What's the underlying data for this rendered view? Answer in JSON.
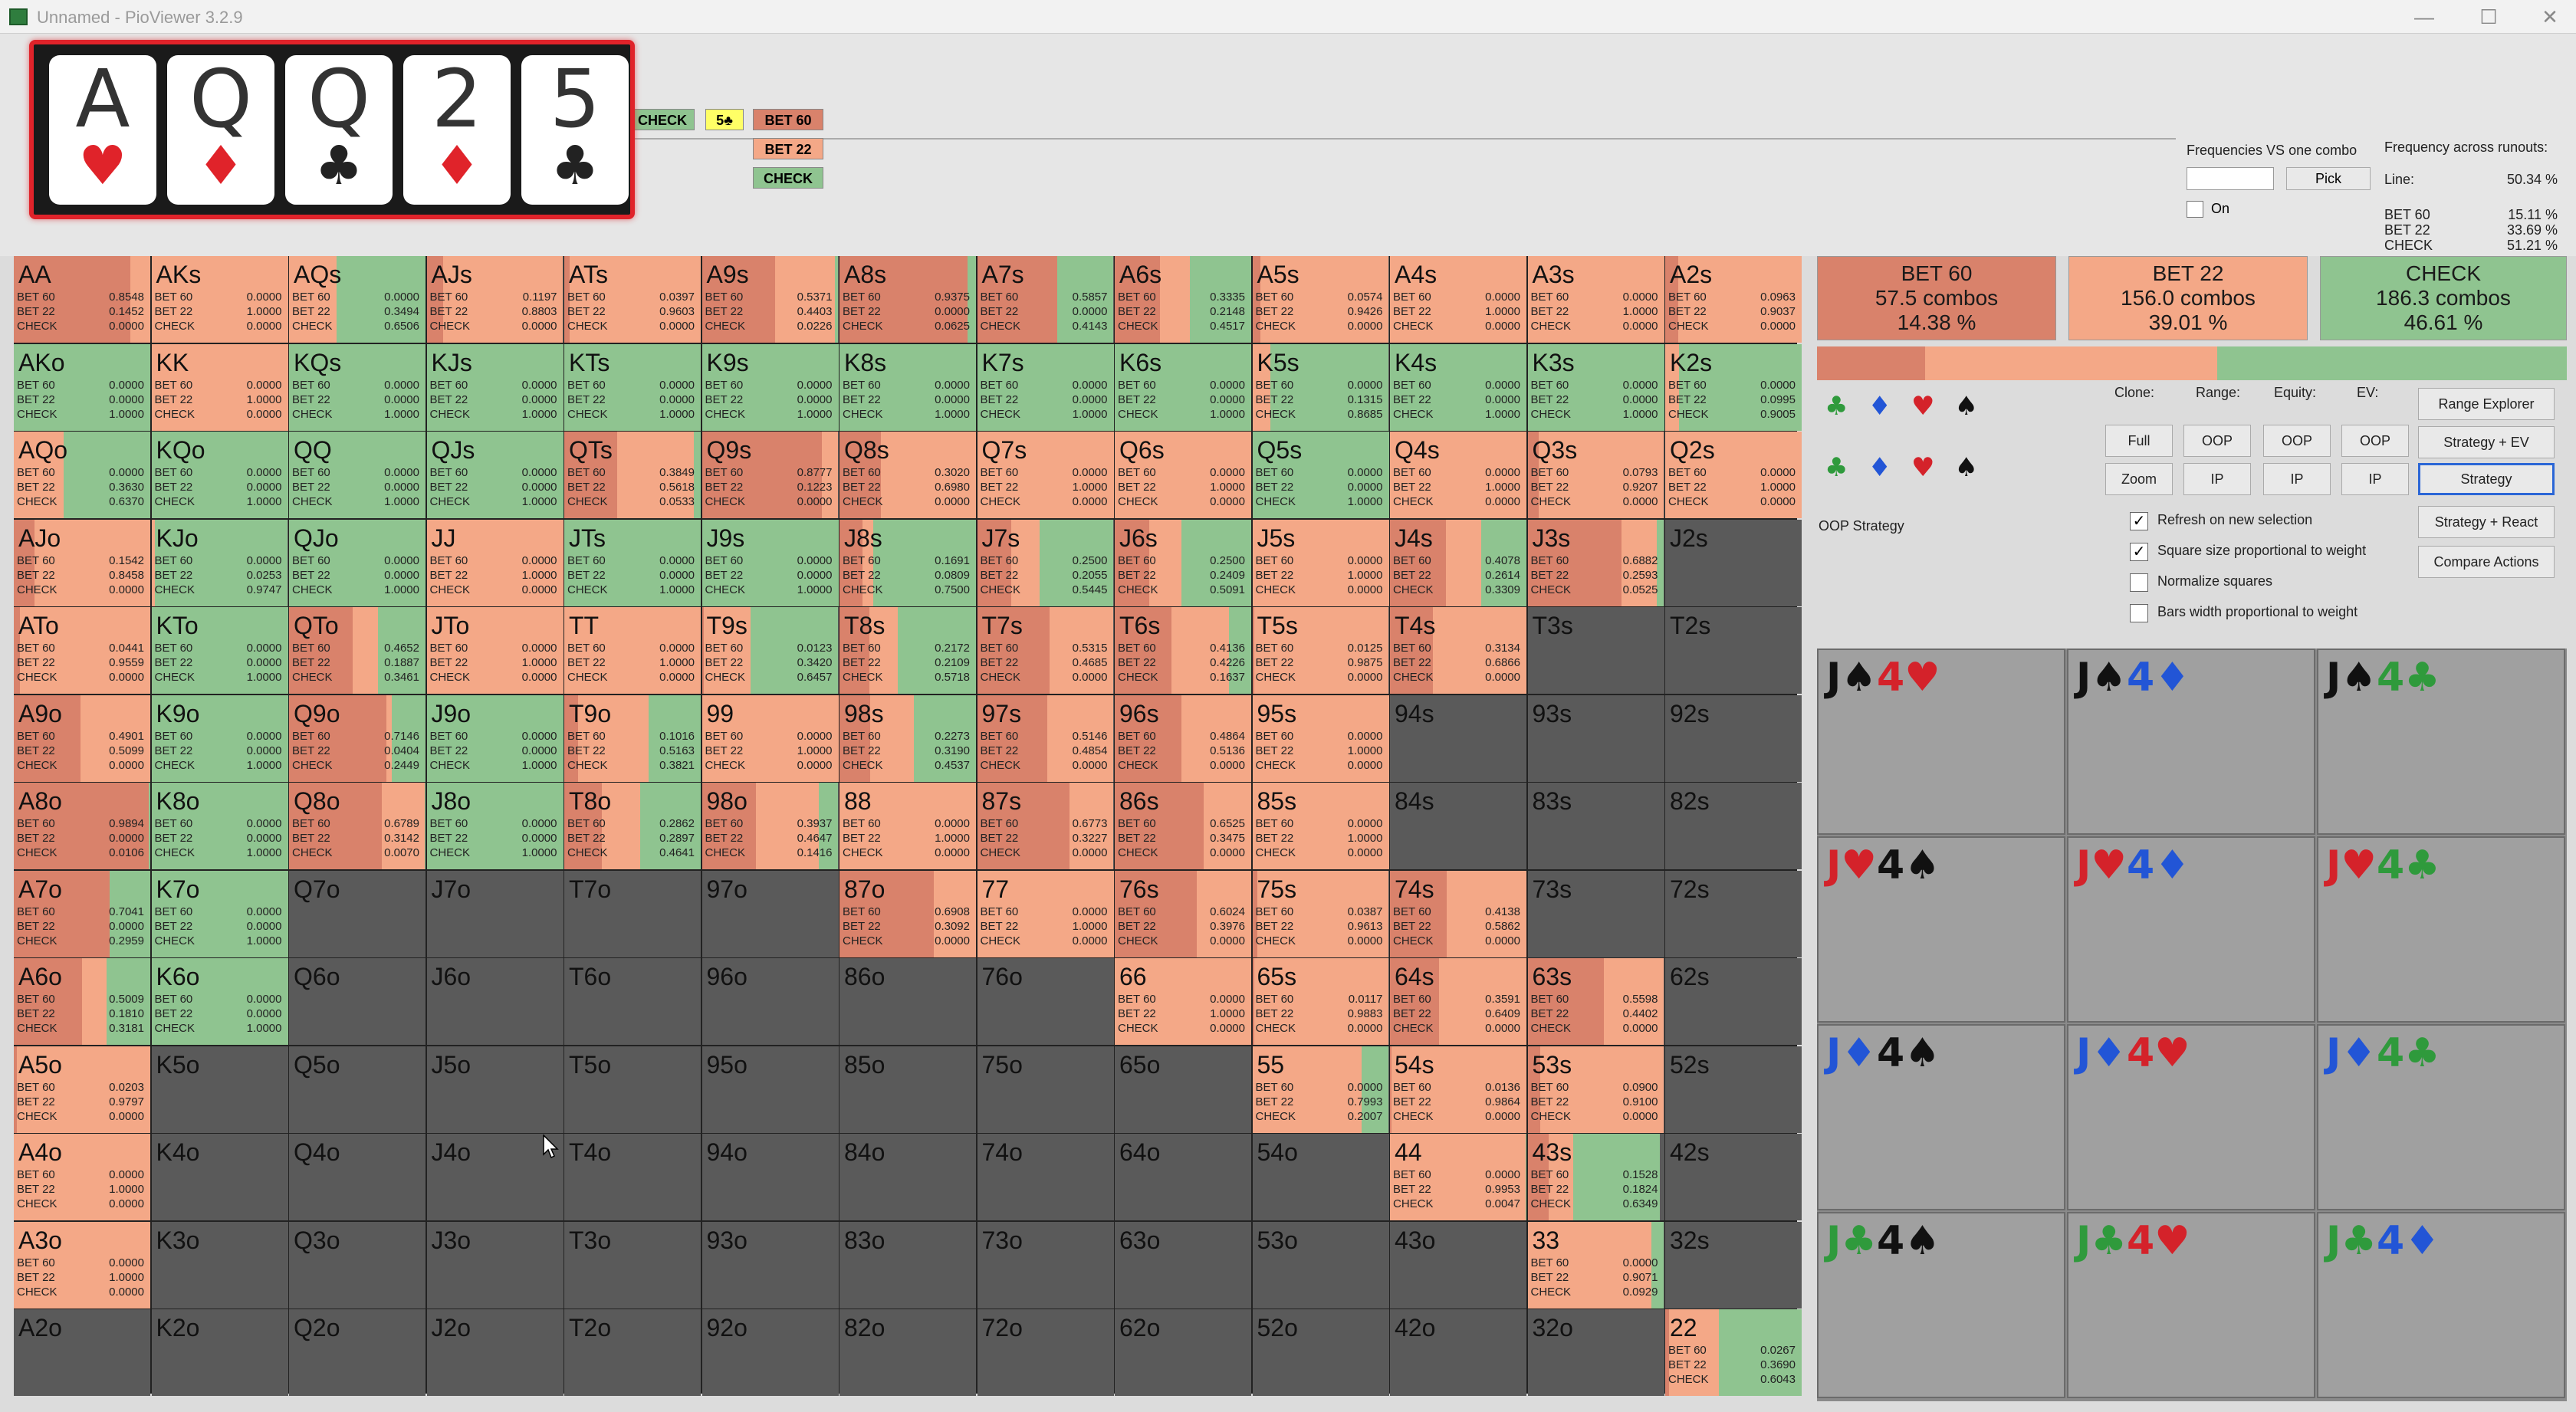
{
  "window": {
    "title": "Unnamed - PioViewer 3.2.9"
  },
  "board": {
    "cards": [
      {
        "rank": "A",
        "suit": "♥",
        "color": "#e0232a"
      },
      {
        "rank": "Q",
        "suit": "♦",
        "color": "#e0232a"
      },
      {
        "rank": "Q",
        "suit": "♣",
        "color": "#222222"
      },
      {
        "rank": "2",
        "suit": "♦",
        "color": "#e0232a"
      },
      {
        "rank": "5",
        "suit": "♣",
        "color": "#222222"
      }
    ]
  },
  "tree": {
    "check": "CHECK",
    "five_club": "5♣",
    "bet60": "BET 60",
    "bet22": "BET 22",
    "check2": "CHECK"
  },
  "freq_vs_combo": {
    "title": "Frequencies VS one combo",
    "pick": "Pick",
    "on": "On"
  },
  "runout": {
    "title": "Frequency across runouts:",
    "line_label": "Line:",
    "line_value": "50.34 %",
    "rows": [
      {
        "label": "BET 60",
        "value": "15.11 %"
      },
      {
        "label": "BET 22",
        "value": "33.69 %"
      },
      {
        "label": "CHECK",
        "value": "51.21 %"
      }
    ]
  },
  "colors": {
    "bet60": "#d9826b",
    "bet22": "#f4a887",
    "check": "#8fc490",
    "empty": "#5a5a5a"
  },
  "grid": [
    [
      "AA",
      0.8548,
      0.1452,
      0.0
    ],
    [
      "AKs",
      0.0,
      1.0,
      0.0
    ],
    [
      "AQs",
      0.0,
      0.3494,
      0.6506
    ],
    [
      "AJs",
      0.1197,
      0.8803,
      0.0
    ],
    [
      "ATs",
      0.0397,
      0.9603,
      0.0
    ],
    [
      "A9s",
      0.5371,
      0.4403,
      0.0226
    ],
    [
      "A8s",
      0.9375,
      0.0,
      0.0625
    ],
    [
      "A7s",
      0.5857,
      0.0,
      0.4143
    ],
    [
      "A6s",
      0.3335,
      0.2148,
      0.4517
    ],
    [
      "A5s",
      0.0574,
      0.9426,
      0.0
    ],
    [
      "A4s",
      0.0,
      1.0,
      0.0
    ],
    [
      "A3s",
      0.0,
      1.0,
      0.0
    ],
    [
      "A2s",
      0.0963,
      0.9037,
      0.0
    ],
    [
      "AKo",
      0.0,
      0.0,
      1.0
    ],
    [
      "KK",
      0.0,
      1.0,
      0.0
    ],
    [
      "KQs",
      0.0,
      0.0,
      1.0
    ],
    [
      "KJs",
      0.0,
      0.0,
      1.0
    ],
    [
      "KTs",
      0.0,
      0.0,
      1.0
    ],
    [
      "K9s",
      0.0,
      0.0,
      1.0
    ],
    [
      "K8s",
      0.0,
      0.0,
      1.0
    ],
    [
      "K7s",
      0.0,
      0.0,
      1.0
    ],
    [
      "K6s",
      0.0,
      0.0,
      1.0
    ],
    [
      "K5s",
      0.0,
      0.1315,
      0.8685
    ],
    [
      "K4s",
      0.0,
      0.0,
      1.0
    ],
    [
      "K3s",
      0.0,
      0.0,
      1.0
    ],
    [
      "K2s",
      0.0,
      0.0995,
      0.9005
    ],
    [
      "AQo",
      0.0,
      0.363,
      0.637
    ],
    [
      "KQo",
      0.0,
      0.0,
      1.0
    ],
    [
      "QQ",
      0.0,
      0.0,
      1.0
    ],
    [
      "QJs",
      0.0,
      0.0,
      1.0
    ],
    [
      "QTs",
      0.3849,
      0.5618,
      0.0533
    ],
    [
      "Q9s",
      0.8777,
      0.1223,
      0.0
    ],
    [
      "Q8s",
      0.302,
      0.698,
      0.0
    ],
    [
      "Q7s",
      0.0,
      1.0,
      0.0
    ],
    [
      "Q6s",
      0.0,
      1.0,
      0.0
    ],
    [
      "Q5s",
      0.0,
      0.0,
      1.0
    ],
    [
      "Q4s",
      0.0,
      1.0,
      0.0
    ],
    [
      "Q3s",
      0.0793,
      0.9207,
      0.0
    ],
    [
      "Q2s",
      0.0,
      1.0,
      0.0
    ],
    [
      "AJo",
      0.1542,
      0.8458,
      0.0
    ],
    [
      "KJo",
      0.0,
      0.0253,
      0.9747
    ],
    [
      "QJo",
      0.0,
      0.0,
      1.0
    ],
    [
      "JJ",
      0.0,
      1.0,
      0.0
    ],
    [
      "JTs",
      0.0,
      0.0,
      1.0
    ],
    [
      "J9s",
      0.0,
      0.0,
      1.0
    ],
    [
      "J8s",
      0.1691,
      0.0809,
      0.75
    ],
    [
      "J7s",
      0.25,
      0.2055,
      0.5445
    ],
    [
      "J6s",
      0.25,
      0.2409,
      0.5091
    ],
    [
      "J5s",
      0.0,
      1.0,
      0.0
    ],
    [
      "J4s",
      0.4078,
      0.2614,
      0.3309
    ],
    [
      "J3s",
      0.6882,
      0.2593,
      0.0525
    ],
    [
      "J2s",
      null,
      null,
      null
    ],
    [
      "ATo",
      0.0441,
      0.9559,
      0.0
    ],
    [
      "KTo",
      0.0,
      0.0,
      1.0
    ],
    [
      "QTo",
      0.4652,
      0.1887,
      0.3461
    ],
    [
      "JTo",
      0.0,
      1.0,
      0.0
    ],
    [
      "TT",
      0.0,
      1.0,
      0.0
    ],
    [
      "T9s",
      0.0123,
      0.342,
      0.6457
    ],
    [
      "T8s",
      0.2172,
      0.2109,
      0.5718
    ],
    [
      "T7s",
      0.5315,
      0.4685,
      0.0
    ],
    [
      "T6s",
      0.4136,
      0.4226,
      0.1637
    ],
    [
      "T5s",
      0.0125,
      0.9875,
      0.0
    ],
    [
      "T4s",
      0.3134,
      0.6866,
      0.0
    ],
    [
      "T3s",
      null,
      null,
      null
    ],
    [
      "T2s",
      null,
      null,
      null
    ],
    [
      "A9o",
      0.4901,
      0.5099,
      0.0
    ],
    [
      "K9o",
      0.0,
      0.0,
      1.0
    ],
    [
      "Q9o",
      0.7146,
      0.0404,
      0.2449
    ],
    [
      "J9o",
      0.0,
      0.0,
      1.0
    ],
    [
      "T9o",
      0.1016,
      0.5163,
      0.3821
    ],
    [
      "99",
      0.0,
      1.0,
      0.0
    ],
    [
      "98s",
      0.2273,
      0.319,
      0.4537
    ],
    [
      "97s",
      0.5146,
      0.4854,
      0.0
    ],
    [
      "96s",
      0.4864,
      0.5136,
      0.0
    ],
    [
      "95s",
      0.0,
      1.0,
      0.0
    ],
    [
      "94s",
      null,
      null,
      null
    ],
    [
      "93s",
      null,
      null,
      null
    ],
    [
      "92s",
      null,
      null,
      null
    ],
    [
      "A8o",
      0.9894,
      0.0,
      0.0106
    ],
    [
      "K8o",
      0.0,
      0.0,
      1.0
    ],
    [
      "Q8o",
      0.6789,
      0.3142,
      0.007
    ],
    [
      "J8o",
      0.0,
      0.0,
      1.0
    ],
    [
      "T8o",
      0.2862,
      0.2897,
      0.4641
    ],
    [
      "98o",
      0.3937,
      0.4647,
      0.1416
    ],
    [
      "88",
      0.0,
      1.0,
      0.0
    ],
    [
      "87s",
      0.6773,
      0.3227,
      0.0
    ],
    [
      "86s",
      0.6525,
      0.3475,
      0.0
    ],
    [
      "85s",
      0.0,
      1.0,
      0.0
    ],
    [
      "84s",
      null,
      null,
      null
    ],
    [
      "83s",
      null,
      null,
      null
    ],
    [
      "82s",
      null,
      null,
      null
    ],
    [
      "A7o",
      0.7041,
      0.0,
      0.2959
    ],
    [
      "K7o",
      0.0,
      0.0,
      1.0
    ],
    [
      "Q7o",
      null,
      null,
      null
    ],
    [
      "J7o",
      null,
      null,
      null
    ],
    [
      "T7o",
      null,
      null,
      null
    ],
    [
      "97o",
      null,
      null,
      null
    ],
    [
      "87o",
      0.6908,
      0.3092,
      0.0
    ],
    [
      "77",
      0.0,
      1.0,
      0.0
    ],
    [
      "76s",
      0.6024,
      0.3976,
      0.0
    ],
    [
      "75s",
      0.0387,
      0.9613,
      0.0
    ],
    [
      "74s",
      0.4138,
      0.5862,
      0.0
    ],
    [
      "73s",
      null,
      null,
      null
    ],
    [
      "72s",
      null,
      null,
      null
    ],
    [
      "A6o",
      0.5009,
      0.181,
      0.3181
    ],
    [
      "K6o",
      0.0,
      0.0,
      1.0
    ],
    [
      "Q6o",
      null,
      null,
      null
    ],
    [
      "J6o",
      null,
      null,
      null
    ],
    [
      "T6o",
      null,
      null,
      null
    ],
    [
      "96o",
      null,
      null,
      null
    ],
    [
      "86o",
      null,
      null,
      null
    ],
    [
      "76o",
      null,
      null,
      null
    ],
    [
      "66",
      0.0,
      1.0,
      0.0
    ],
    [
      "65s",
      0.0117,
      0.9883,
      0.0
    ],
    [
      "64s",
      0.3591,
      0.6409,
      0.0
    ],
    [
      "63s",
      0.5598,
      0.4402,
      0.0
    ],
    [
      "62s",
      null,
      null,
      null
    ],
    [
      "A5o",
      0.0203,
      0.9797,
      0.0
    ],
    [
      "K5o",
      null,
      null,
      null
    ],
    [
      "Q5o",
      null,
      null,
      null
    ],
    [
      "J5o",
      null,
      null,
      null
    ],
    [
      "T5o",
      null,
      null,
      null
    ],
    [
      "95o",
      null,
      null,
      null
    ],
    [
      "85o",
      null,
      null,
      null
    ],
    [
      "75o",
      null,
      null,
      null
    ],
    [
      "65o",
      null,
      null,
      null
    ],
    [
      "55",
      0.0,
      0.7993,
      0.2007
    ],
    [
      "54s",
      0.0136,
      0.9864,
      0.0
    ],
    [
      "53s",
      0.09,
      0.91,
      0.0
    ],
    [
      "52s",
      null,
      null,
      null
    ],
    [
      "A4o",
      0.0,
      1.0,
      0.0
    ],
    [
      "K4o",
      null,
      null,
      null
    ],
    [
      "Q4o",
      null,
      null,
      null
    ],
    [
      "J4o",
      null,
      null,
      null
    ],
    [
      "T4o",
      null,
      null,
      null
    ],
    [
      "94o",
      null,
      null,
      null
    ],
    [
      "84o",
      null,
      null,
      null
    ],
    [
      "74o",
      null,
      null,
      null
    ],
    [
      "64o",
      null,
      null,
      null
    ],
    [
      "54o",
      null,
      null,
      null
    ],
    [
      "44",
      0.0,
      0.9953,
      0.0047
    ],
    [
      "43s",
      0.1528,
      0.1824,
      0.6349
    ],
    [
      "42s",
      null,
      null,
      null
    ],
    [
      "A3o",
      0.0,
      1.0,
      0.0
    ],
    [
      "K3o",
      null,
      null,
      null
    ],
    [
      "Q3o",
      null,
      null,
      null
    ],
    [
      "J3o",
      null,
      null,
      null
    ],
    [
      "T3o",
      null,
      null,
      null
    ],
    [
      "93o",
      null,
      null,
      null
    ],
    [
      "83o",
      null,
      null,
      null
    ],
    [
      "73o",
      null,
      null,
      null
    ],
    [
      "63o",
      null,
      null,
      null
    ],
    [
      "53o",
      null,
      null,
      null
    ],
    [
      "43o",
      null,
      null,
      null
    ],
    [
      "33",
      0.0,
      0.9071,
      0.0929
    ],
    [
      "32s",
      null,
      null,
      null
    ],
    [
      "A2o",
      null,
      null,
      null
    ],
    [
      "K2o",
      null,
      null,
      null
    ],
    [
      "Q2o",
      null,
      null,
      null
    ],
    [
      "J2o",
      null,
      null,
      null
    ],
    [
      "T2o",
      null,
      null,
      null
    ],
    [
      "92o",
      null,
      null,
      null
    ],
    [
      "82o",
      null,
      null,
      null
    ],
    [
      "72o",
      null,
      null,
      null
    ],
    [
      "62o",
      null,
      null,
      null
    ],
    [
      "52o",
      null,
      null,
      null
    ],
    [
      "42o",
      null,
      null,
      null
    ],
    [
      "32o",
      null,
      null,
      null
    ],
    [
      "22",
      0.0267,
      0.369,
      0.6043
    ]
  ],
  "row_labels": {
    "bet60": "BET 60",
    "bet22": "BET 22",
    "check": "CHECK"
  },
  "summary": [
    {
      "label": "BET 60",
      "combos": "57.5 combos",
      "pct": "14.38 %",
      "frac": 0.1438
    },
    {
      "label": "BET 22",
      "combos": "156.0 combos",
      "pct": "39.01 %",
      "frac": 0.3901
    },
    {
      "label": "CHECK",
      "combos": "186.3 combos",
      "pct": "46.61 %",
      "frac": 0.4661
    }
  ],
  "controls": {
    "clone": "Clone:",
    "range": "Range:",
    "equity": "Equity:",
    "ev": "EV:",
    "full": "Full",
    "zoom": "Zoom",
    "oop": "OOP",
    "ip": "IP",
    "range_explorer": "Range Explorer",
    "strategy_ev": "Strategy + EV",
    "strategy": "Strategy",
    "strategy_react": "Strategy + React",
    "compare_actions": "Compare Actions",
    "oop_strategy": "OOP Strategy",
    "refresh": "Refresh on new selection",
    "square_size": "Square size proportional to weight",
    "normalize": "Normalize squares",
    "bars_width": "Bars width proportional to weight",
    "suits_row1": "♣♦♥♠",
    "suits_row2": "♣♦♥♠"
  },
  "combos": [
    [
      {
        "r1": "J",
        "s1": "♠",
        "c1": "#111111",
        "r2": "4",
        "s2": "♥",
        "c2": "#d4222a"
      },
      {
        "r1": "J",
        "s1": "♠",
        "c1": "#111111",
        "r2": "4",
        "s2": "♦",
        "c2": "#2255d6"
      },
      {
        "r1": "J",
        "s1": "♠",
        "c1": "#111111",
        "r2": "4",
        "s2": "♣",
        "c2": "#2f9a3c"
      }
    ],
    [
      {
        "r1": "J",
        "s1": "♥",
        "c1": "#d4222a",
        "r2": "4",
        "s2": "♠",
        "c2": "#111111"
      },
      {
        "r1": "J",
        "s1": "♥",
        "c1": "#d4222a",
        "r2": "4",
        "s2": "♦",
        "c2": "#2255d6"
      },
      {
        "r1": "J",
        "s1": "♥",
        "c1": "#d4222a",
        "r2": "4",
        "s2": "♣",
        "c2": "#2f9a3c"
      }
    ],
    [
      {
        "r1": "J",
        "s1": "♦",
        "c1": "#2255d6",
        "r2": "4",
        "s2": "♠",
        "c2": "#111111"
      },
      {
        "r1": "J",
        "s1": "♦",
        "c1": "#2255d6",
        "r2": "4",
        "s2": "♥",
        "c2": "#d4222a"
      },
      {
        "r1": "J",
        "s1": "♦",
        "c1": "#2255d6",
        "r2": "4",
        "s2": "♣",
        "c2": "#2f9a3c"
      }
    ],
    [
      {
        "r1": "J",
        "s1": "♣",
        "c1": "#2f9a3c",
        "r2": "4",
        "s2": "♠",
        "c2": "#111111"
      },
      {
        "r1": "J",
        "s1": "♣",
        "c1": "#2f9a3c",
        "r2": "4",
        "s2": "♥",
        "c2": "#d4222a"
      },
      {
        "r1": "J",
        "s1": "♣",
        "c1": "#2f9a3c",
        "r2": "4",
        "s2": "♦",
        "c2": "#2255d6"
      }
    ]
  ]
}
